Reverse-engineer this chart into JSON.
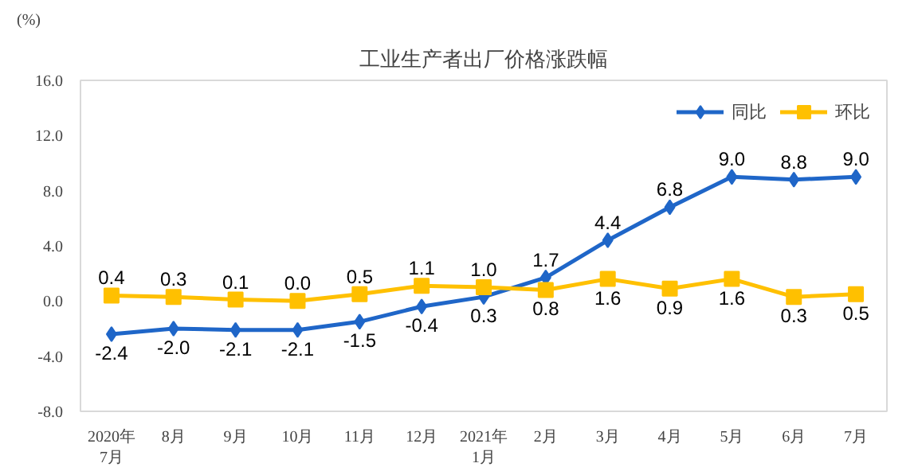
{
  "chart_data": {
    "type": "line",
    "title": "工业生产者出厂价格涨跌幅",
    "ylabel": "(%)",
    "categories": [
      "2020年\n7月",
      "8月",
      "9月",
      "10月",
      "11月",
      "12月",
      "2021年\n1月",
      "2月",
      "3月",
      "4月",
      "5月",
      "6月",
      "7月"
    ],
    "series": [
      {
        "name": "同比",
        "color": "#1f66c8",
        "marker": "diamond",
        "values": [
          -2.4,
          -2.0,
          -2.1,
          -2.1,
          -1.5,
          -0.4,
          0.3,
          1.7,
          4.4,
          6.8,
          9.0,
          8.8,
          9.0
        ],
        "value_labels": [
          "-2.4",
          "-2.0",
          "-2.1",
          "-2.1",
          "-1.5",
          "-0.4",
          "0.3",
          "1.7",
          "4.4",
          "6.8",
          "9.0",
          "8.8",
          "9.0"
        ]
      },
      {
        "name": "环比",
        "color": "#ffc000",
        "marker": "square",
        "values": [
          0.4,
          0.3,
          0.1,
          0.0,
          0.5,
          1.1,
          1.0,
          0.8,
          1.6,
          0.9,
          1.6,
          0.3,
          0.5
        ],
        "value_labels": [
          "0.4",
          "0.3",
          "0.1",
          "0.0",
          "0.5",
          "1.1",
          "1.0",
          "0.8",
          "1.6",
          "0.9",
          "1.6",
          "0.3",
          "0.5"
        ]
      }
    ],
    "ylim": [
      -8,
      16
    ],
    "yticks": [
      {
        "value": -8,
        "label": "-8.0"
      },
      {
        "value": -4,
        "label": "-4.0"
      },
      {
        "value": 0,
        "label": "0.0"
      },
      {
        "value": 4,
        "label": "4.0"
      },
      {
        "value": 8,
        "label": "8.0"
      },
      {
        "value": 12,
        "label": "12.0"
      },
      {
        "value": 16,
        "label": "16.0"
      }
    ],
    "legend": "top right",
    "grid": false,
    "line_style": "solid"
  }
}
